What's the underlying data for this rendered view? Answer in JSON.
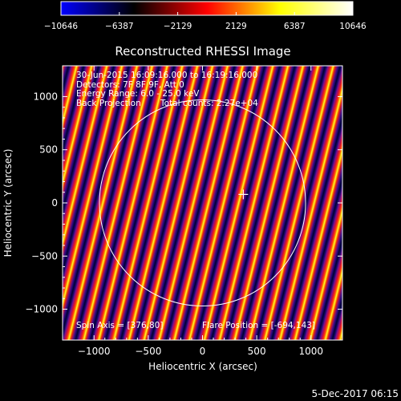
{
  "chart_data": {
    "type": "heatmap",
    "title": "Reconstructed RHESSI Image",
    "xlabel": "Heliocentric X (arcsec)",
    "ylabel": "Heliocentric Y (arcsec)",
    "xlim": [
      -1290,
      1290
    ],
    "ylim": [
      -1290,
      1290
    ],
    "x_ticks": [
      -1000,
      -500,
      0,
      500,
      1000
    ],
    "y_ticks": [
      -1000,
      -500,
      0,
      500,
      1000
    ],
    "x_tick_labels": [
      "−1000",
      "−500",
      "0",
      "500",
      "1000"
    ],
    "y_tick_labels": [
      "−1000",
      "−500",
      "0",
      "500",
      "1000"
    ],
    "colorbar": {
      "min": -10646,
      "max": 10646,
      "ticks": [
        -10646,
        -6387,
        -2129,
        2129,
        6387,
        10646
      ],
      "tick_labels": [
        "−10646",
        "−6387",
        "−2129",
        "2129",
        "6387",
        "10646"
      ],
      "colors": [
        "#0000ff",
        "#000000",
        "#ff0000",
        "#ffff00",
        "#ffffff"
      ]
    },
    "annotations": {
      "time": "30-Jun-2015 16:09:16.000 to 16:19:16.000",
      "detectors": "Detectors: 7F 8F 9F, Att 0",
      "energy": "Energy Range: 6.0 - 25.0 keV",
      "method": "Back Projection",
      "counts": "Total counts: 2.27e+04",
      "spin_axis": "Spin Axis = [376,80]",
      "flare_position": "Flare Position = [-694,143]"
    },
    "solar_limb_radius": 950,
    "marker": {
      "x": 376,
      "y": 80,
      "shape": "cross"
    },
    "stripe_angle_deg": 14,
    "stripe_period": 135
  },
  "footer": {
    "timestamp": "5-Dec-2017 06:15"
  }
}
